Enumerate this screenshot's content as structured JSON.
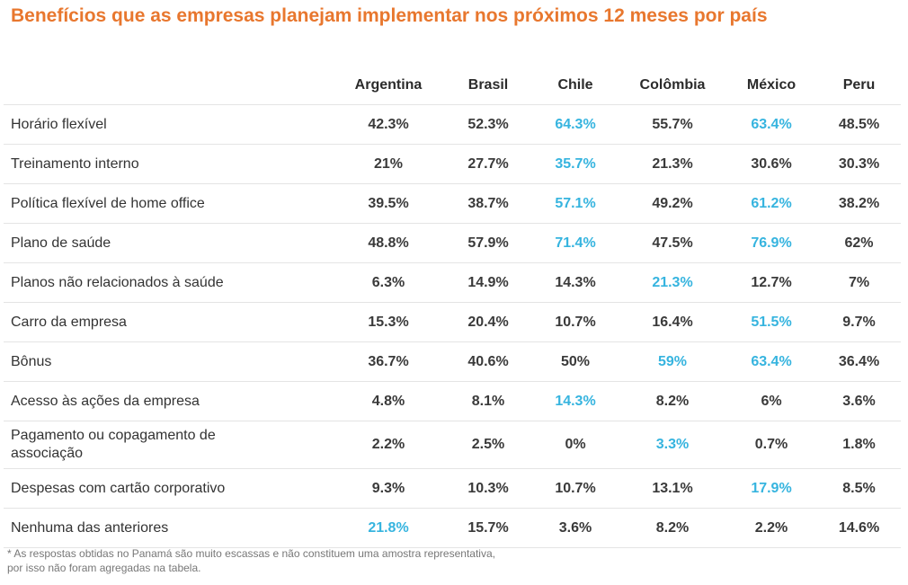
{
  "title": "Benefícios que as empresas planejam implementar nos próximos 12 meses por país",
  "footnote": "* As respostas obtidas no Panamá são muito escassas e não constituem uma amostra representativa, por isso não foram agregadas na tabela.",
  "colors": {
    "title": "#e8772e",
    "highlight": "#36b4df",
    "value": "#3a3a3a"
  },
  "chart_data": {
    "type": "table",
    "columns": [
      "Argentina",
      "Brasil",
      "Chile",
      "Colômbia",
      "México",
      "Peru"
    ],
    "rows": [
      {
        "label": "Horário flexível",
        "values": [
          "42.3%",
          "52.3%",
          "64.3%",
          "55.7%",
          "63.4%",
          "48.5%"
        ],
        "highlight": [
          2,
          4
        ]
      },
      {
        "label": "Treinamento interno",
        "values": [
          "21%",
          "27.7%",
          "35.7%",
          "21.3%",
          "30.6%",
          "30.3%"
        ],
        "highlight": [
          2
        ]
      },
      {
        "label": "Política flexível de home office",
        "values": [
          "39.5%",
          "38.7%",
          "57.1%",
          "49.2%",
          "61.2%",
          "38.2%"
        ],
        "highlight": [
          2,
          4
        ]
      },
      {
        "label": "Plano de saúde",
        "values": [
          "48.8%",
          "57.9%",
          "71.4%",
          "47.5%",
          "76.9%",
          "62%"
        ],
        "highlight": [
          2,
          4
        ]
      },
      {
        "label": "Planos não relacionados à saúde",
        "values": [
          "6.3%",
          "14.9%",
          "14.3%",
          "21.3%",
          "12.7%",
          "7%"
        ],
        "highlight": [
          3
        ]
      },
      {
        "label": "Carro da empresa",
        "values": [
          "15.3%",
          "20.4%",
          "10.7%",
          "16.4%",
          "51.5%",
          "9.7%"
        ],
        "highlight": [
          4
        ]
      },
      {
        "label": "Bônus",
        "values": [
          "36.7%",
          "40.6%",
          "50%",
          "59%",
          "63.4%",
          "36.4%"
        ],
        "highlight": [
          3,
          4
        ]
      },
      {
        "label": "Acesso às ações da empresa",
        "values": [
          "4.8%",
          "8.1%",
          "14.3%",
          "8.2%",
          "6%",
          "3.6%"
        ],
        "highlight": [
          2
        ]
      },
      {
        "label": "Pagamento ou copagamento de associação",
        "values": [
          "2.2%",
          "2.5%",
          "0%",
          "3.3%",
          "0.7%",
          "1.8%"
        ],
        "highlight": [
          3
        ]
      },
      {
        "label": "Despesas com cartão corporativo",
        "values": [
          "9.3%",
          "10.3%",
          "10.7%",
          "13.1%",
          "17.9%",
          "8.5%"
        ],
        "highlight": [
          4
        ]
      },
      {
        "label": "Nenhuma das anteriores",
        "values": [
          "21.8%",
          "15.7%",
          "3.6%",
          "8.2%",
          "2.2%",
          "14.6%"
        ],
        "highlight": [
          0
        ]
      }
    ]
  }
}
